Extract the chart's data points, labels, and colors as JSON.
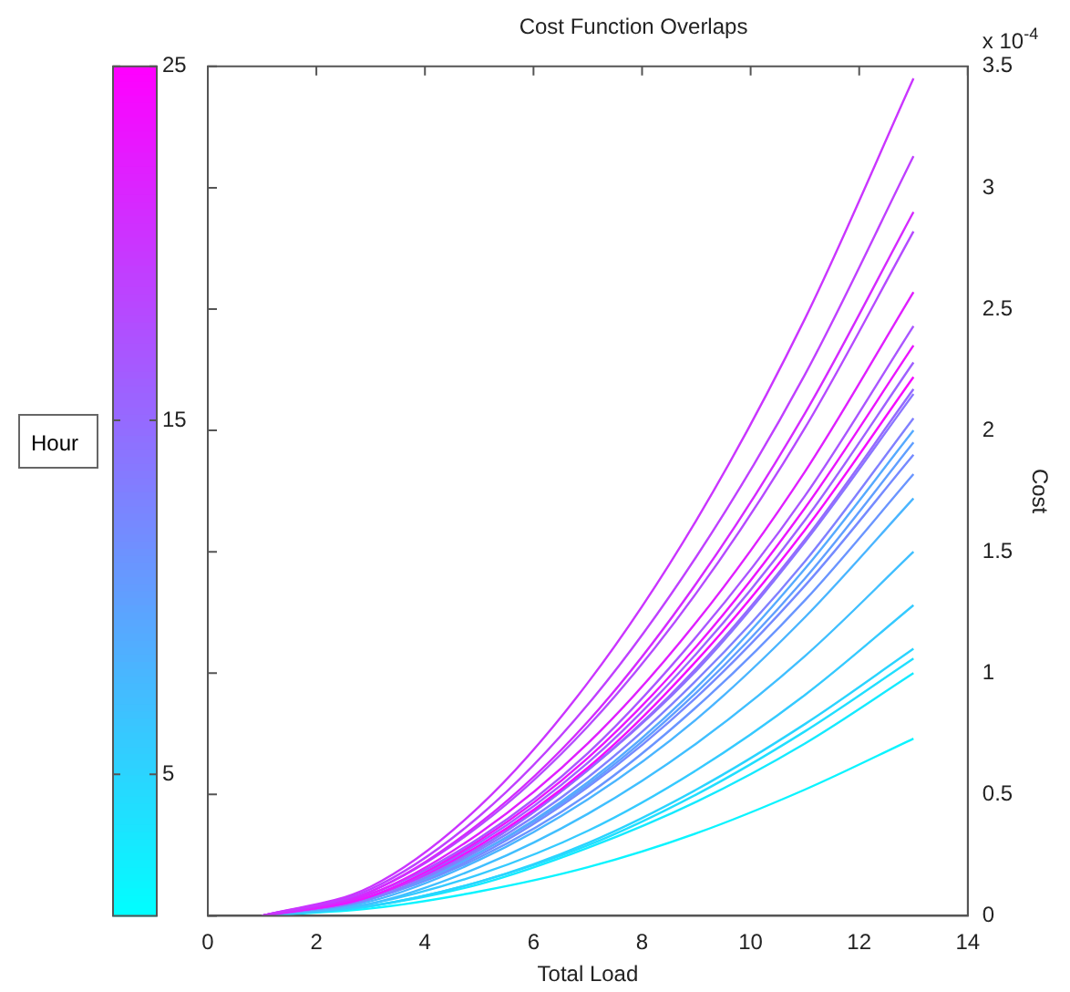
{
  "chart_data": {
    "type": "line",
    "title": "Cost Function Overlaps",
    "xlabel": "Total Load",
    "ylabel": "Cost",
    "clabel": "Hour",
    "annotations": [
      "x 10$^{-4}$"
    ],
    "x": [
      1,
      3,
      5,
      7,
      9,
      11,
      13
    ],
    "xlim": [
      0,
      14
    ],
    "xticks": [
      0,
      2,
      4,
      6,
      8,
      10,
      12,
      14
    ],
    "ylim": [
      0,
      3.5
    ],
    "yticks": [
      0,
      0.5,
      1,
      1.5,
      2,
      2.5,
      3,
      3.5
    ],
    "clim": [
      1,
      25
    ],
    "cticks": [
      5,
      15,
      25
    ],
    "grid": false,
    "legend": false,
    "marker": "none",
    "line_style": "solid",
    "series": [
      {
        "color": "#ca35ff",
        "values": [
          0,
          0.12,
          0.45,
          0.96,
          1.63,
          2.46,
          3.45
        ]
      },
      {
        "color": "#bf40ff",
        "values": [
          0,
          0.11,
          0.41,
          0.87,
          1.48,
          2.23,
          3.13
        ]
      },
      {
        "color": "#d42aff",
        "values": [
          0,
          0.1,
          0.38,
          0.8,
          1.37,
          2.07,
          2.9
        ]
      },
      {
        "color": "#b54aff",
        "values": [
          0,
          0.1,
          0.37,
          0.78,
          1.33,
          2.01,
          2.82
        ]
      },
      {
        "color": "#df20ff",
        "values": [
          0,
          0.09,
          0.34,
          0.71,
          1.21,
          1.83,
          2.57
        ]
      },
      {
        "color": "#aa55ff",
        "values": [
          0,
          0.09,
          0.32,
          0.67,
          1.15,
          1.73,
          2.43
        ]
      },
      {
        "color": "#ea15ff",
        "values": [
          0,
          0.08,
          0.31,
          0.65,
          1.11,
          1.68,
          2.35
        ]
      },
      {
        "color": "#9f60ff",
        "values": [
          0,
          0.08,
          0.3,
          0.63,
          1.08,
          1.63,
          2.28
        ]
      },
      {
        "color": "#f40bff",
        "values": [
          0,
          0.08,
          0.29,
          0.61,
          1.05,
          1.59,
          2.22
        ]
      },
      {
        "color": "#956aff",
        "values": [
          0,
          0.08,
          0.28,
          0.6,
          1.02,
          1.55,
          2.17
        ]
      },
      {
        "color": "#8a75ff",
        "values": [
          0,
          0.08,
          0.28,
          0.6,
          1.01,
          1.54,
          2.15
        ]
      },
      {
        "color": "#8080ff",
        "values": [
          0,
          0.07,
          0.27,
          0.57,
          0.97,
          1.46,
          2.05
        ]
      },
      {
        "color": "#55aaff",
        "values": [
          0,
          0.07,
          0.26,
          0.55,
          0.94,
          1.43,
          2.0
        ]
      },
      {
        "color": "#609fff",
        "values": [
          0,
          0.07,
          0.26,
          0.54,
          0.92,
          1.39,
          1.95
        ]
      },
      {
        "color": "#758aff",
        "values": [
          0,
          0.07,
          0.25,
          0.53,
          0.9,
          1.36,
          1.9
        ]
      },
      {
        "color": "#6a95ff",
        "values": [
          0,
          0.07,
          0.24,
          0.5,
          0.86,
          1.3,
          1.82
        ]
      },
      {
        "color": "#4ab5ff",
        "values": [
          0,
          0.06,
          0.23,
          0.48,
          0.81,
          1.23,
          1.72
        ]
      },
      {
        "color": "#40bfff",
        "values": [
          0,
          0.05,
          0.2,
          0.42,
          0.71,
          1.07,
          1.5
        ]
      },
      {
        "color": "#35caff",
        "values": [
          0,
          0.05,
          0.17,
          0.35,
          0.6,
          0.91,
          1.28
        ]
      },
      {
        "color": "#2ad4ff",
        "values": [
          0,
          0.04,
          0.14,
          0.3,
          0.52,
          0.79,
          1.1
        ]
      },
      {
        "color": "#20dfff",
        "values": [
          0,
          0.04,
          0.14,
          0.29,
          0.5,
          0.76,
          1.06
        ]
      },
      {
        "color": "#15eaff",
        "values": [
          0,
          0.04,
          0.13,
          0.28,
          0.47,
          0.71,
          1.0
        ]
      },
      {
        "color": "#0bf4ff",
        "values": [
          0,
          0.03,
          0.1,
          0.2,
          0.34,
          0.52,
          0.73
        ]
      }
    ]
  }
}
